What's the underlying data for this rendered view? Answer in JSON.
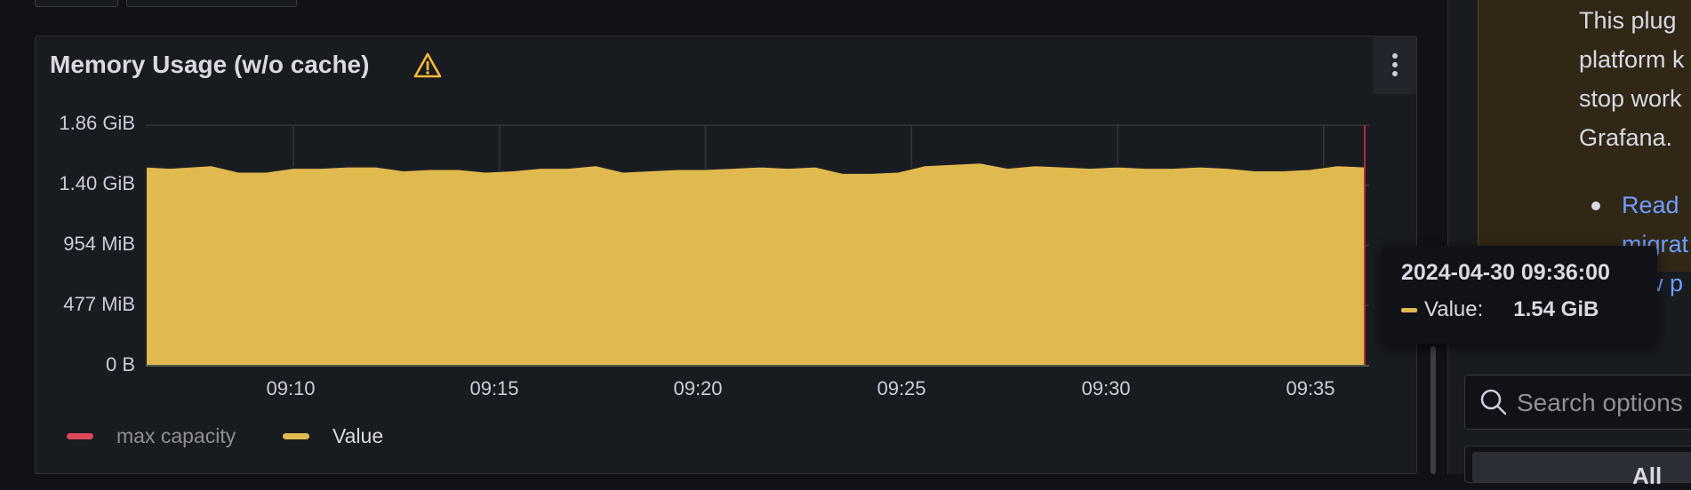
{
  "panel": {
    "title": "Memory Usage (w/o cache)",
    "warning_icon": "warning-triangle-icon",
    "menu_icon": "kebab-menu-icon"
  },
  "chart_data": {
    "type": "area",
    "title": "Memory Usage (w/o cache)",
    "y_ticks": [
      "1.86 GiB",
      "1.40 GiB",
      "954 MiB",
      "477 MiB",
      "0 B"
    ],
    "x_ticks": [
      "09:10",
      "09:15",
      "09:20",
      "09:25",
      "09:30",
      "09:35"
    ],
    "x_range": [
      "09:06:25",
      "09:36:00"
    ],
    "ylim_gib": [
      0,
      1.86
    ],
    "grid": true,
    "legend_position": "bottom-left",
    "series": [
      {
        "name": "Value",
        "color": "#e0b94f",
        "x": [
          "09:06:25",
          "09:07:00",
          "09:08:00",
          "09:08:40",
          "09:09:20",
          "09:10:00",
          "09:10:40",
          "09:11:20",
          "09:12:00",
          "09:12:40",
          "09:13:20",
          "09:14:00",
          "09:14:40",
          "09:15:20",
          "09:16:00",
          "09:16:40",
          "09:17:20",
          "09:18:00",
          "09:18:40",
          "09:19:20",
          "09:20:00",
          "09:20:40",
          "09:21:20",
          "09:22:00",
          "09:22:40",
          "09:23:20",
          "09:24:00",
          "09:24:40",
          "09:25:20",
          "09:26:00",
          "09:26:40",
          "09:27:20",
          "09:28:00",
          "09:28:40",
          "09:29:20",
          "09:30:00",
          "09:30:40",
          "09:31:20",
          "09:32:00",
          "09:32:40",
          "09:33:20",
          "09:34:00",
          "09:34:40",
          "09:35:20",
          "09:36:00"
        ],
        "y_gib": [
          1.54,
          1.53,
          1.55,
          1.5,
          1.5,
          1.53,
          1.53,
          1.54,
          1.54,
          1.51,
          1.52,
          1.52,
          1.5,
          1.51,
          1.53,
          1.53,
          1.55,
          1.5,
          1.51,
          1.52,
          1.52,
          1.53,
          1.54,
          1.53,
          1.54,
          1.49,
          1.49,
          1.5,
          1.55,
          1.56,
          1.57,
          1.53,
          1.55,
          1.54,
          1.53,
          1.54,
          1.53,
          1.53,
          1.54,
          1.53,
          1.51,
          1.51,
          1.52,
          1.55,
          1.54
        ]
      },
      {
        "name": "max capacity",
        "color": "#e0485a",
        "values": []
      }
    ]
  },
  "legend": {
    "items": [
      {
        "label": "max capacity",
        "color": "#e0485a"
      },
      {
        "label": "Value",
        "color": "#e0b94f"
      }
    ]
  },
  "tooltip": {
    "time": "2024-04-30 09:36:00",
    "series_label": "Value:",
    "value": "1.54 GiB"
  },
  "sidebar": {
    "notice_lines": [
      "This plug",
      "platform k",
      "stop work",
      "Grafana."
    ],
    "link_lines": [
      "Read",
      "migrat",
      "ew p"
    ],
    "search_placeholder": "Search options",
    "tab_all": "All"
  }
}
